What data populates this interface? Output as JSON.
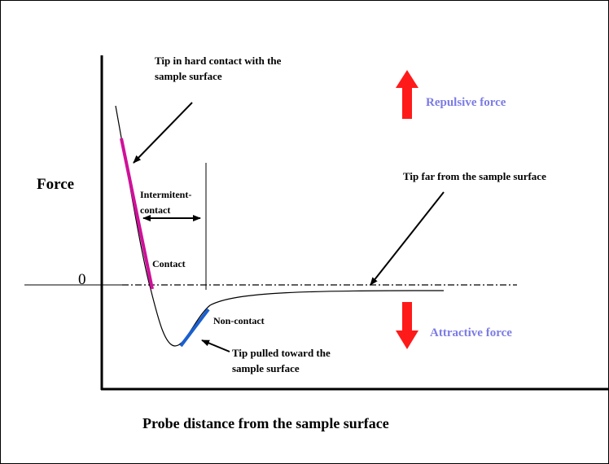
{
  "labels": {
    "force": "Force",
    "zero": "0",
    "hard_contact": [
      "Tip in hard contact with the",
      "sample surface"
    ],
    "intermittent": [
      "Intermitent-",
      "contact"
    ],
    "contact": "Contact",
    "non_contact": "Non-contact",
    "pulled": [
      "Tip pulled toward the",
      "sample surface"
    ],
    "far": "Tip far from the sample surface",
    "repulsive": "Repulsive force",
    "attractive": "Attractive force",
    "x_axis": "Probe distance from the sample surface"
  }
}
